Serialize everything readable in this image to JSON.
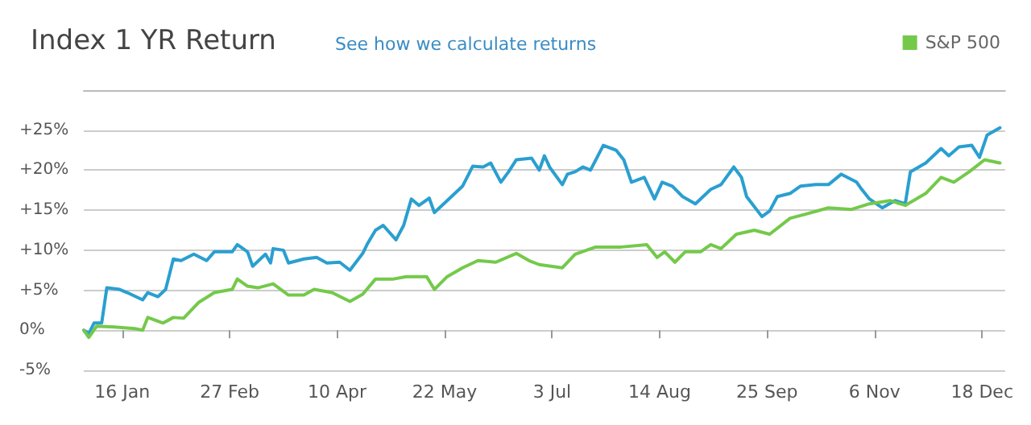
{
  "chart_data": {
    "type": "line",
    "title": "Index 1 YR Return",
    "subtitle": "See how we calculate returns",
    "xlim": [
      "--01-01",
      "--12-27"
    ],
    "xticks": [
      {
        "value": "--01-16",
        "label": "16 Jan"
      },
      {
        "value": "--02-27",
        "label": "27 Feb"
      },
      {
        "value": "--04-10",
        "label": "10 Apr"
      },
      {
        "value": "--05-22",
        "label": "22 May"
      },
      {
        "value": "--07-03",
        "label": "3 Jul"
      },
      {
        "value": "--08-14",
        "label": "14 Aug"
      },
      {
        "value": "--09-25",
        "label": "25 Sep"
      },
      {
        "value": "--11-06",
        "label": "6 Nov"
      },
      {
        "value": "--12-18",
        "label": "18 Dec"
      }
    ],
    "ylim": [
      -5,
      30
    ],
    "yticks": [
      {
        "value": -5,
        "label": "-5%"
      },
      {
        "value": 0,
        "label": "0%"
      },
      {
        "value": 5,
        "label": "+5%"
      },
      {
        "value": 10,
        "label": "+10%"
      },
      {
        "value": 15,
        "label": "+15%"
      },
      {
        "value": 20,
        "label": "+20%"
      },
      {
        "value": 25,
        "label": "+25%"
      }
    ],
    "grid": "y",
    "legend": "top right",
    "marker": "none",
    "line_style": "solid",
    "series": [
      {
        "color": "#2a9fd0",
        "x": [
          "--01-01",
          "--01-03",
          "--01-05",
          "--01-08",
          "--01-10",
          "--01-15",
          "--01-18",
          "--01-24",
          "--01-26",
          "--01-30",
          "--02-02",
          "--02-05",
          "--02-08",
          "--02-13",
          "--02-18",
          "--02-21",
          "--02-28",
          "--03-02",
          "--03-06",
          "--03-08",
          "--03-13",
          "--03-15",
          "--03-16",
          "--03-20",
          "--03-22",
          "--03-28",
          "--04-02",
          "--04-06",
          "--04-11",
          "--04-15",
          "--04-20",
          "--04-22",
          "--04-25",
          "--04-28",
          "--05-03",
          "--05-06",
          "--05-09",
          "--05-12",
          "--05-16",
          "--05-18",
          "--05-23",
          "--05-29",
          "--06-02",
          "--06-06",
          "--06-09",
          "--06-13",
          "--06-16",
          "--06-19",
          "--06-25",
          "--06-28",
          "--06-30",
          "--07-02",
          "--07-07",
          "--07-09",
          "--07-12",
          "--07-15",
          "--07-18",
          "--07-23",
          "--07-28",
          "--07-31",
          "--08-03",
          "--08-08",
          "--08-12",
          "--08-15",
          "--08-19",
          "--08-23",
          "--08-28",
          "--09-03",
          "--09-07",
          "--09-12",
          "--09-15",
          "--09-17",
          "--09-23",
          "--09-26",
          "--09-29",
          "--10-04",
          "--10-08",
          "--10-14",
          "--10-19",
          "--10-24",
          "--10-30",
          "--11-01",
          "--11-04",
          "--11-09",
          "--11-14",
          "--11-18",
          "--11-20",
          "--11-26",
          "--12-02",
          "--12-05",
          "--12-09",
          "--12-14",
          "--12-17",
          "--12-20",
          "--12-25"
        ],
        "values": [
          0,
          -0.4,
          0.9,
          0.9,
          5.3,
          5.1,
          4.7,
          3.8,
          4.7,
          4.2,
          5.1,
          8.9,
          8.7,
          9.5,
          8.7,
          9.8,
          9.8,
          10.7,
          9.8,
          8.0,
          9.5,
          8.4,
          10.2,
          10.0,
          8.4,
          8.9,
          9.1,
          8.4,
          8.5,
          7.5,
          9.6,
          10.9,
          12.5,
          13.1,
          11.3,
          13.1,
          16.4,
          15.6,
          16.5,
          14.7,
          16.2,
          18.0,
          20.5,
          20.4,
          20.9,
          18.5,
          19.8,
          21.3,
          21.5,
          20.0,
          21.8,
          20.4,
          18.2,
          19.5,
          19.8,
          20.4,
          20.0,
          23.1,
          22.5,
          21.3,
          18.5,
          19.1,
          16.4,
          18.5,
          18.0,
          16.7,
          15.8,
          17.6,
          18.2,
          20.4,
          19.1,
          16.7,
          14.2,
          14.9,
          16.7,
          17.1,
          18.0,
          18.2,
          18.2,
          19.5,
          18.5,
          17.6,
          16.4,
          15.3,
          16.2,
          15.8,
          19.8,
          20.9,
          22.7,
          21.8,
          22.9,
          23.1,
          21.6,
          24.4,
          25.3
        ]
      },
      {
        "name": "S&P 500",
        "color": "#74c94a",
        "x": [
          "--01-01",
          "--01-03",
          "--01-06",
          "--01-13",
          "--01-21",
          "--01-24",
          "--01-26",
          "--02-01",
          "--02-05",
          "--02-09",
          "--02-15",
          "--02-21",
          "--02-28",
          "--03-02",
          "--03-06",
          "--03-10",
          "--03-16",
          "--03-22",
          "--03-28",
          "--04-01",
          "--04-08",
          "--04-15",
          "--04-20",
          "--04-25",
          "--05-02",
          "--05-07",
          "--05-15",
          "--05-18",
          "--05-23",
          "--05-29",
          "--06-04",
          "--06-11",
          "--06-19",
          "--06-24",
          "--06-28",
          "--07-07",
          "--07-12",
          "--07-20",
          "--07-30",
          "--08-09",
          "--08-13",
          "--08-16",
          "--08-20",
          "--08-24",
          "--08-30",
          "--09-03",
          "--09-07",
          "--09-13",
          "--09-20",
          "--09-26",
          "--10-04",
          "--10-10",
          "--10-19",
          "--10-28",
          "--11-04",
          "--11-12",
          "--11-18",
          "--11-26",
          "--12-02",
          "--12-07",
          "--12-13",
          "--12-19",
          "--12-25"
        ],
        "values": [
          0,
          -0.9,
          0.5,
          0.4,
          0.2,
          0,
          1.6,
          0.9,
          1.6,
          1.5,
          3.5,
          4.7,
          5.1,
          6.4,
          5.5,
          5.3,
          5.8,
          4.4,
          4.4,
          5.1,
          4.7,
          3.6,
          4.5,
          6.4,
          6.4,
          6.7,
          6.7,
          5.1,
          6.7,
          7.8,
          8.7,
          8.5,
          9.6,
          8.7,
          8.2,
          7.8,
          9.5,
          10.4,
          10.4,
          10.7,
          9.1,
          9.8,
          8.5,
          9.8,
          9.8,
          10.7,
          10.2,
          12.0,
          12.5,
          12.0,
          14.0,
          14.5,
          15.3,
          15.1,
          15.8,
          16.2,
          15.6,
          17.1,
          19.1,
          18.5,
          19.8,
          21.3,
          20.9
        ]
      }
    ]
  }
}
